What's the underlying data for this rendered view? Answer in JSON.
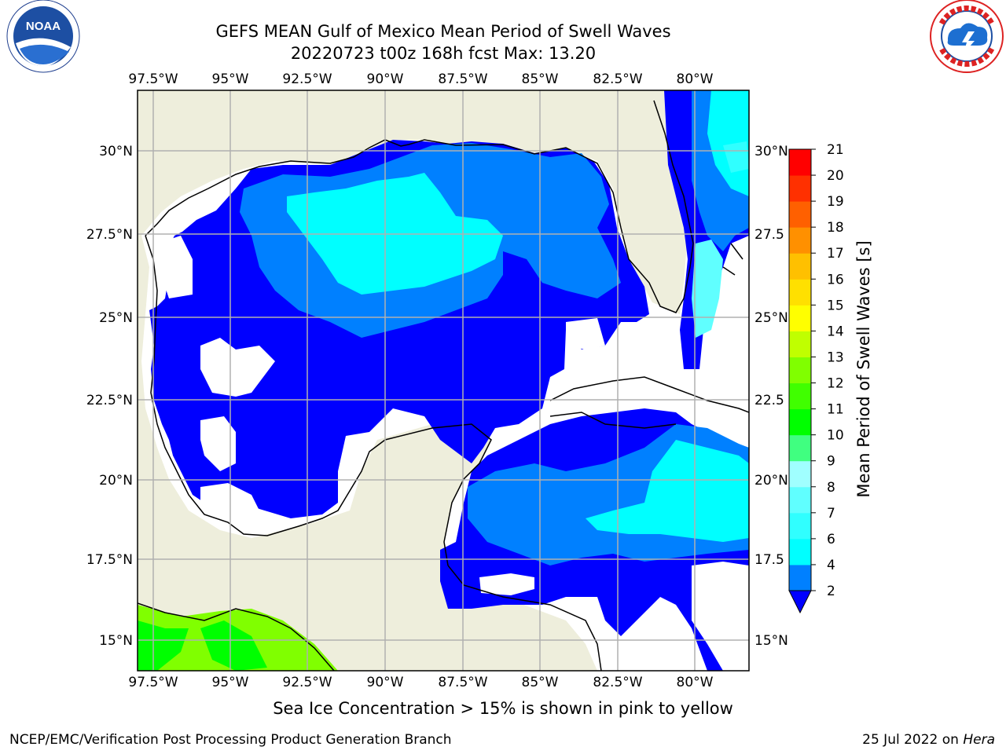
{
  "header": {
    "title_line1": "GEFS MEAN Gulf of Mexico Mean Period of Swell Waves",
    "title_line2": "20220723 t00z 168h fcst   Max: 13.20"
  },
  "logos": {
    "left": {
      "name": "noaa-logo",
      "text": "NOAA"
    },
    "right": {
      "name": "nws-logo",
      "text": "NATIONAL WEATHER SERVICE"
    }
  },
  "map": {
    "lon_labels": [
      "97.5°W",
      "95°W",
      "92.5°W",
      "90°W",
      "87.5°W",
      "85°W",
      "82.5°W",
      "80°W"
    ],
    "lat_labels_left": [
      "30°N",
      "27.5°N",
      "25°N",
      "22.5°N",
      "20°N",
      "17.5°N",
      "15°N"
    ],
    "lat_labels_right": [
      "30°N",
      "27.5",
      "25°N",
      "22.5",
      "20°N",
      "17.5",
      "15°N"
    ],
    "colors": {
      "land": "#eeeedc",
      "grid": "#b0b0b0",
      "coast": "#000000"
    }
  },
  "colorbar": {
    "label": "Mean Period of Swell Waves [s]",
    "ticks": [
      "2",
      "4",
      "6",
      "7",
      "8",
      "9",
      "10",
      "11",
      "12",
      "13",
      "14",
      "15",
      "16",
      "17",
      "18",
      "19",
      "20",
      "21"
    ],
    "colors": [
      "#0000ff",
      "#0080ff",
      "#00ffff",
      "#30ffff",
      "#60ffff",
      "#a0ffff",
      "#40ff80",
      "#00ff00",
      "#40ff00",
      "#80ff00",
      "#c0ff00",
      "#ffff00",
      "#ffe000",
      "#ffc000",
      "#ff9000",
      "#ff6000",
      "#ff3000",
      "#ff0000"
    ]
  },
  "footer": {
    "note": "Sea Ice Concentration > 15% is shown in pink to yellow",
    "left": "NCEP/EMC/Verification Post Processing Product Generation Branch",
    "right_date": "25 Jul 2022 on ",
    "right_host": "Hera"
  }
}
